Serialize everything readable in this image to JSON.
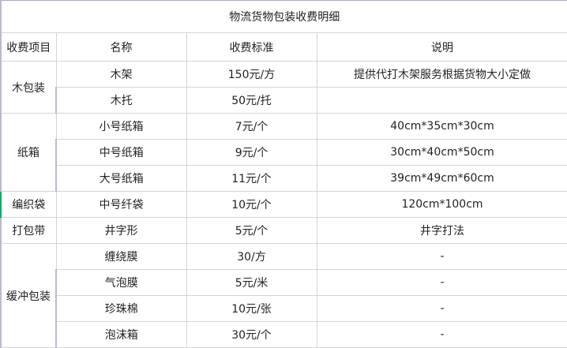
{
  "title": "物流货物包装收费明细",
  "headers": [
    "收费项目",
    "名称",
    "收费标准",
    "说明"
  ],
  "groups": [
    {
      "category": "木包装",
      "items": [
        {
          "name": "木架",
          "price": "150元/方",
          "note": "提供代打木架服务根据货物大小定做"
        },
        {
          "name": "木托",
          "price": "50元/托",
          "note": ""
        }
      ]
    },
    {
      "category": "纸箱",
      "items": [
        {
          "name": "小号纸箱",
          "price": "7元/个",
          "note": "40cm*35cm*30cm"
        },
        {
          "name": "中号纸箱",
          "price": "9元/个",
          "note": "30cm*40cm*50cm"
        },
        {
          "name": "大号纸箱",
          "price": "11元/个",
          "note": "39cm*49cm*60cm"
        }
      ]
    },
    {
      "category": "编织袋",
      "items": [
        {
          "name": "中号纤袋",
          "price": "10元/个",
          "note": "120cm*100cm"
        }
      ]
    },
    {
      "category": "打包带",
      "items": [
        {
          "name": "井字形",
          "price": "5元/个",
          "note": "井字打法"
        }
      ]
    },
    {
      "category": "缓冲包装",
      "items": [
        {
          "name": "缠绕膜",
          "price": "30/方",
          "note": "-"
        },
        {
          "name": "气泡膜",
          "price": "5元/米",
          "note": "-"
        },
        {
          "name": "珍珠棉",
          "price": "10元/张",
          "note": "-"
        },
        {
          "name": "泡沫箱",
          "price": "30元/个",
          "note": "-"
        }
      ]
    }
  ],
  "selected_category": "编织袋"
}
